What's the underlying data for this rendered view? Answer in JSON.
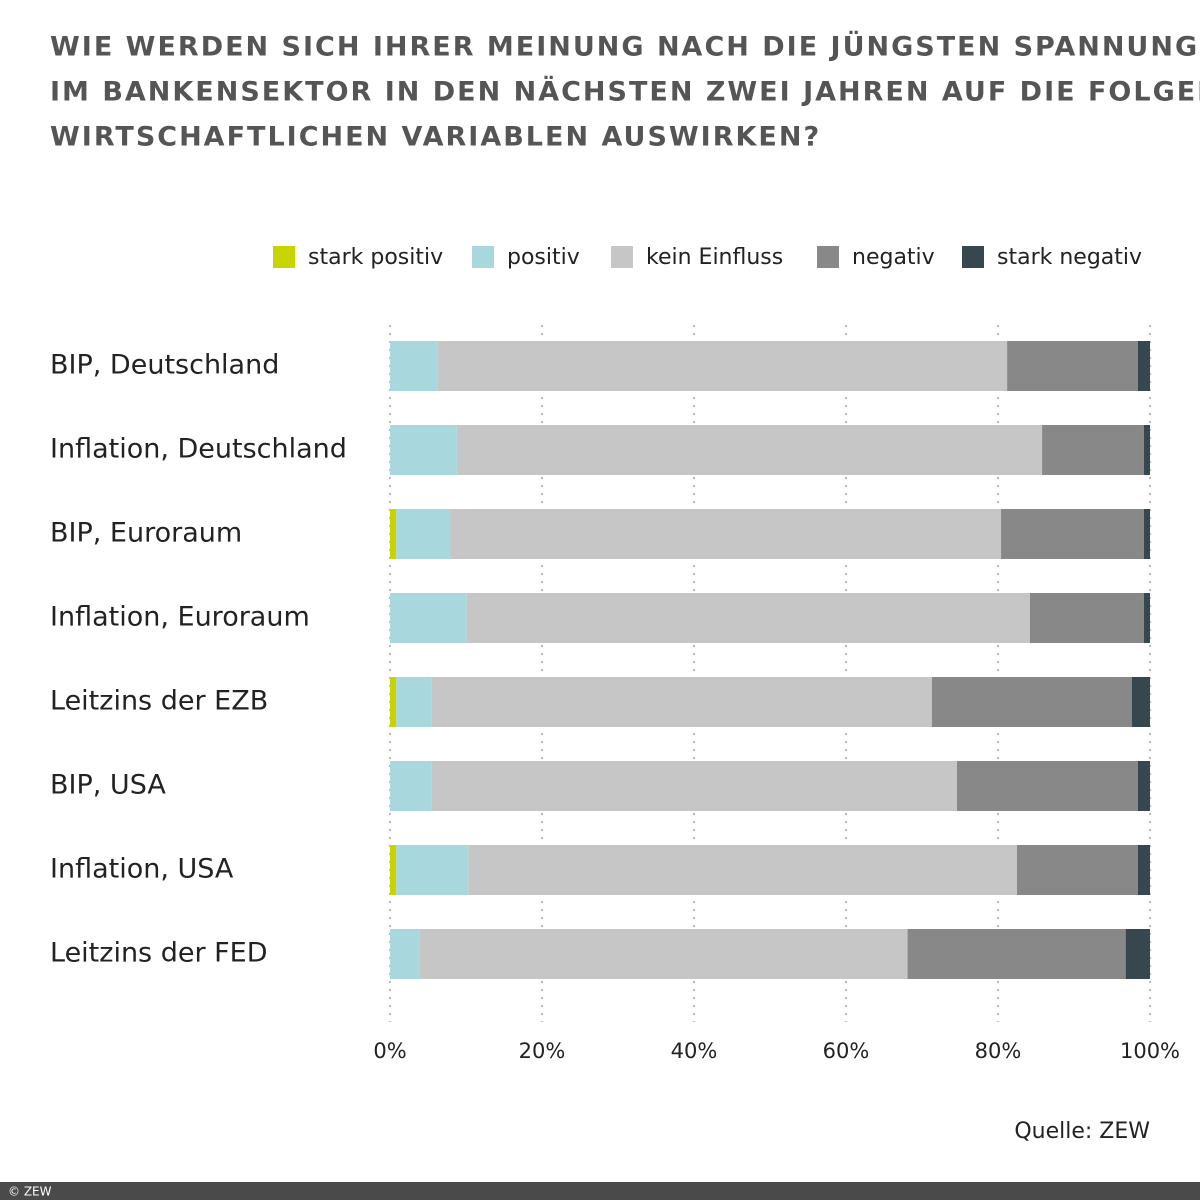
{
  "chart_data": {
    "type": "stacked_barh",
    "title": [
      "WIE WERDEN SICH IHRER MEINUNG NACH DIE JÜNGSTEN SPANNUNGEN",
      "IM BANKENSEKTOR IN DEN NÄCHSTEN ZWEI JAHREN AUF DIE FOLGENDEN",
      "WIRTSCHAFTLICHEN VARIABLEN AUSWIRKEN?"
    ],
    "categories": [
      "BIP, Deutschland",
      "Inflation, Deutschland",
      "BIP, Euroraum",
      "Inflation, Euroraum",
      "Leitzins der EZB",
      "BIP, USA",
      "Inflation, USA",
      "Leitzins der FED"
    ],
    "series": [
      {
        "name": "stark positiv",
        "color": "#c8d400",
        "values": [
          0,
          0,
          0.8,
          0,
          0.8,
          0,
          0.8,
          0
        ]
      },
      {
        "name": "positiv",
        "color": "#a8d8dd",
        "values": [
          6.3,
          8.8,
          7.1,
          10.1,
          4.7,
          5.5,
          9.5,
          3.9
        ]
      },
      {
        "name": "kein Einfluss",
        "color": "#c6c6c6",
        "values": [
          74.9,
          77.0,
          72.5,
          74.1,
          65.8,
          69.1,
          72.2,
          64.2
        ]
      },
      {
        "name": "negativ",
        "color": "#888888",
        "values": [
          17.2,
          13.4,
          18.8,
          15.0,
          26.3,
          23.8,
          15.9,
          28.7
        ]
      },
      {
        "name": "stark negativ",
        "color": "#37474f",
        "values": [
          1.6,
          0.8,
          0.8,
          0.8,
          2.4,
          1.6,
          1.6,
          3.2
        ]
      }
    ],
    "xlim": [
      0,
      100
    ],
    "xticks": [
      {
        "value": 0,
        "label": "0%"
      },
      {
        "value": 20,
        "label": "20%"
      },
      {
        "value": 40,
        "label": "40%"
      },
      {
        "value": 60,
        "label": "60%"
      },
      {
        "value": 80,
        "label": "80%"
      },
      {
        "value": 100,
        "label": "100%"
      }
    ],
    "grid": true,
    "source": "Quelle: ZEW",
    "copyright": "© ZEW"
  }
}
